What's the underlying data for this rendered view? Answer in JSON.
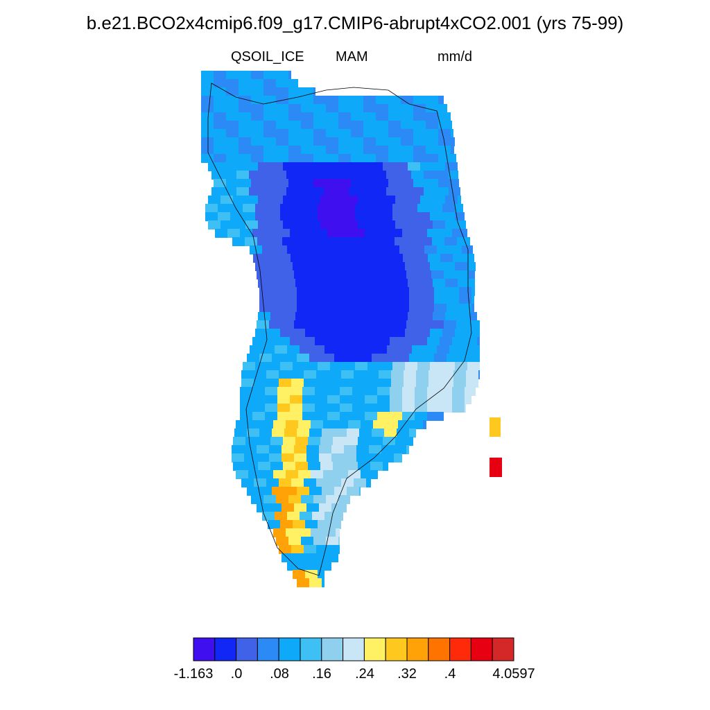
{
  "title": "b.e21.BCO2x4cmip6.f09_g17.CMIP6-abrupt4xCO2.001 (yrs 75-99)",
  "variable": "QSOIL_ICE",
  "season": "MAM",
  "units": "mm/d",
  "chart_data": {
    "type": "heatmap",
    "region": "Greenland",
    "colorbar": {
      "colors": [
        "#3f0ff0",
        "#1127f5",
        "#3f62e8",
        "#2b8af5",
        "#0fa9fa",
        "#3fc0f5",
        "#8fd0ef",
        "#c9e6f6",
        "#fff163",
        "#ffc81f",
        "#ffa208",
        "#ff7300",
        "#ff2a0a",
        "#e60011",
        "#d42828"
      ],
      "tick_labels": [
        "-1.163",
        ".0",
        ".08",
        ".16",
        ".24",
        ".32",
        ".4",
        "4.0597"
      ]
    }
  }
}
